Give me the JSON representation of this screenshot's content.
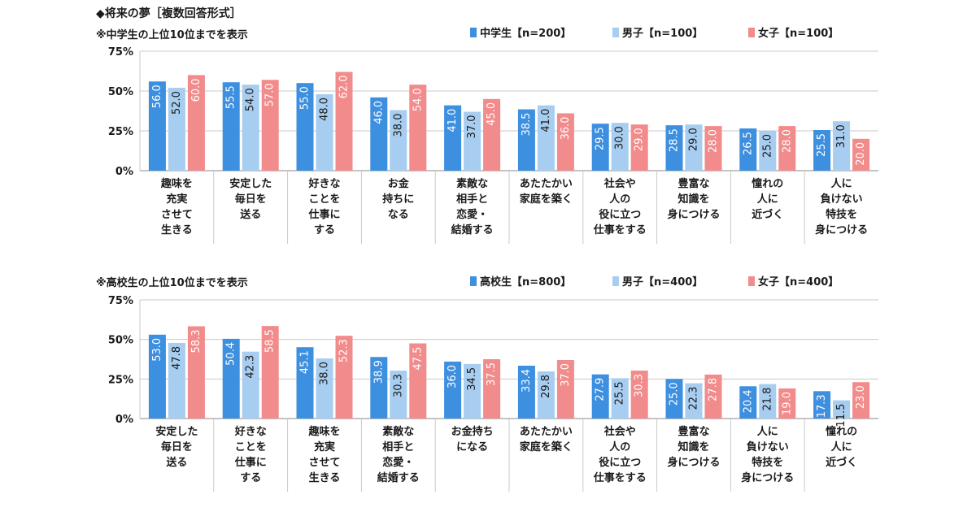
{
  "page_title": "◆将来の夢［複数回答形式］",
  "colors": {
    "total": "#3d8fe0",
    "male": "#a7cdf0",
    "female": "#f28b8b",
    "grid": "#c9c9c9",
    "axis": "#888888"
  },
  "chart_data": [
    {
      "type": "bar",
      "subtitle": "※中学生の上位10位までを表示",
      "categories": [
        "趣味を\n充実\nさせて\n生きる",
        "安定した\n毎日を\n送る",
        "好きな\nことを\n仕事に\nする",
        "お金\n持ちに\nなる",
        "素敵な\n相手と\n恋愛・\n結婚する",
        "あたたかい\n家庭を築く",
        "社会や\n人の\n役に立つ\n仕事をする",
        "豊富な\n知識を\n身につける",
        "憧れの\n人に\n近づく",
        "人に\n負けない\n特技を\n身につける"
      ],
      "series": [
        {
          "name": "中学生【n=200】",
          "values": [
            56.0,
            55.5,
            55.0,
            46.0,
            41.0,
            38.5,
            29.5,
            28.5,
            26.5,
            25.5
          ]
        },
        {
          "name": "男子【n=100】",
          "values": [
            52.0,
            54.0,
            48.0,
            38.0,
            37.0,
            41.0,
            30.0,
            29.0,
            25.0,
            31.0
          ]
        },
        {
          "name": "女子【n=100】",
          "values": [
            60.0,
            57.0,
            62.0,
            54.0,
            45.0,
            36.0,
            29.0,
            28.0,
            28.0,
            20.0
          ]
        }
      ],
      "yticks": [
        "75%",
        "50%",
        "25%",
        "0%"
      ],
      "ylim": [
        0,
        75
      ],
      "grid": true,
      "legend": "top-right"
    },
    {
      "type": "bar",
      "subtitle": "※高校生の上位10位までを表示",
      "categories": [
        "安定した\n毎日を\n送る",
        "好きな\nことを\n仕事に\nする",
        "趣味を\n充実\nさせて\n生きる",
        "素敵な\n相手と\n恋愛・\n結婚する",
        "お金持ち\nになる",
        "あたたかい\n家庭を築く",
        "社会や\n人の\n役に立つ\n仕事をする",
        "豊富な\n知識を\n身につける",
        "人に\n負けない\n特技を\n身につける",
        "憧れの\n人に\n近づく"
      ],
      "series": [
        {
          "name": "高校生【n=800】",
          "values": [
            53.0,
            50.4,
            45.1,
            38.9,
            36.0,
            33.4,
            27.9,
            25.0,
            20.4,
            17.3
          ]
        },
        {
          "name": "男子【n=400】",
          "values": [
            47.8,
            42.3,
            38.0,
            30.3,
            34.5,
            29.8,
            25.5,
            22.3,
            21.8,
            11.5
          ]
        },
        {
          "name": "女子【n=400】",
          "values": [
            58.3,
            58.5,
            52.3,
            47.5,
            37.5,
            37.0,
            30.3,
            27.8,
            19.0,
            23.0
          ]
        }
      ],
      "yticks": [
        "75%",
        "50%",
        "25%",
        "0%"
      ],
      "ylim": [
        0,
        75
      ],
      "grid": true,
      "legend": "top-right"
    }
  ]
}
